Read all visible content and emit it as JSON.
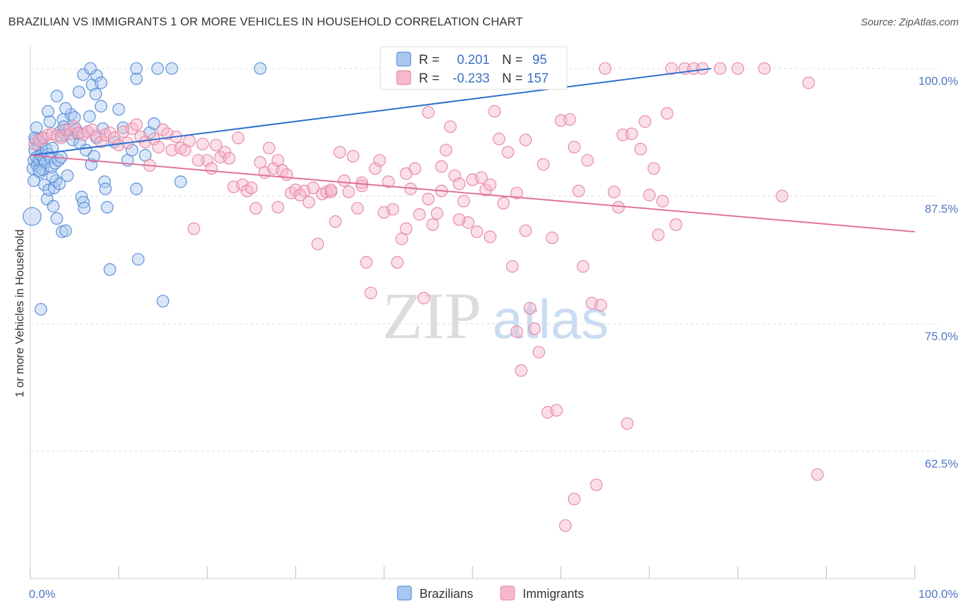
{
  "header": {
    "title": "BRAZILIAN VS IMMIGRANTS 1 OR MORE VEHICLES IN HOUSEHOLD CORRELATION CHART",
    "source": "Source: ZipAtlas.com"
  },
  "watermark": {
    "zip": "ZIP",
    "atlas": "atlas"
  },
  "colors": {
    "brazilians_fill": "#a9c8f0",
    "brazilians_stroke": "#5b8fd6",
    "brazilians_line": "#2b6fd0",
    "immigrants_fill": "#f6b9cc",
    "immigrants_stroke": "#e68aa8",
    "immigrants_line": "#e0709a",
    "grid": "#dddddd",
    "tick_text": "#4a78c4"
  },
  "legend": {
    "r_label": "R =",
    "n_label": "N =",
    "rows": [
      {
        "r": "0.201",
        "n": "95"
      },
      {
        "r": "-0.233",
        "n": "157"
      }
    ]
  },
  "chart_data": {
    "type": "scatter",
    "title": "BRAZILIAN VS IMMIGRANTS 1 OR MORE VEHICLES IN HOUSEHOLD CORRELATION CHART",
    "xlabel": "",
    "ylabel": "1 or more Vehicles in Household",
    "xlim": [
      0,
      100
    ],
    "ylim": [
      50,
      102
    ],
    "x_tick_labels": [
      "0.0%",
      "100.0%"
    ],
    "y_ticks": [
      62.5,
      75.0,
      87.5,
      100.0
    ],
    "y_tick_labels": [
      "62.5%",
      "75.0%",
      "87.5%",
      "100.0%"
    ],
    "grid": true,
    "legend_position": "top-center",
    "series": [
      {
        "name": "Brazilians",
        "trend": {
          "x": [
            0,
            77
          ],
          "y": [
            91.5,
            100
          ]
        },
        "points": [
          [
            0.2,
            85.5
          ],
          [
            0.3,
            90.2
          ],
          [
            0.4,
            91.0
          ],
          [
            0.5,
            92.0
          ],
          [
            0.6,
            93.0
          ],
          [
            0.7,
            91.3
          ],
          [
            0.8,
            90.5
          ],
          [
            0.9,
            92.5
          ],
          [
            1.0,
            91.0
          ],
          [
            1.1,
            89.8
          ],
          [
            1.2,
            91.5
          ],
          [
            1.3,
            93.2
          ],
          [
            1.4,
            90.1
          ],
          [
            1.5,
            91.1
          ],
          [
            1.6,
            88.6
          ],
          [
            1.7,
            90.8
          ],
          [
            1.8,
            92.1
          ],
          [
            1.9,
            87.2
          ],
          [
            2.0,
            91.6
          ],
          [
            2.1,
            88.1
          ],
          [
            2.2,
            94.8
          ],
          [
            2.3,
            91.2
          ],
          [
            2.4,
            90.3
          ],
          [
            2.5,
            92.2
          ],
          [
            2.6,
            86.5
          ],
          [
            2.7,
            88.3
          ],
          [
            2.8,
            90.7
          ],
          [
            2.9,
            89.0
          ],
          [
            3.0,
            85.3
          ],
          [
            3.2,
            91.0
          ],
          [
            3.3,
            88.7
          ],
          [
            3.4,
            93.8
          ],
          [
            3.5,
            91.3
          ],
          [
            3.6,
            84.0
          ],
          [
            3.7,
            95.0
          ],
          [
            3.8,
            94.3
          ],
          [
            3.9,
            93.5
          ],
          [
            4.0,
            84.1
          ],
          [
            4.2,
            89.5
          ],
          [
            4.4,
            94.0
          ],
          [
            4.6,
            95.5
          ],
          [
            4.8,
            93.0
          ],
          [
            5.0,
            95.2
          ],
          [
            5.2,
            94.0
          ],
          [
            5.4,
            93.6
          ],
          [
            5.6,
            92.7
          ],
          [
            5.8,
            87.4
          ],
          [
            6.0,
            86.9
          ],
          [
            6.1,
            86.3
          ],
          [
            6.3,
            92.0
          ],
          [
            6.5,
            93.8
          ],
          [
            6.7,
            95.3
          ],
          [
            6.9,
            90.6
          ],
          [
            7.2,
            91.4
          ],
          [
            7.5,
            93.2
          ],
          [
            8.0,
            96.3
          ],
          [
            8.2,
            94.1
          ],
          [
            8.4,
            88.9
          ],
          [
            8.5,
            88.2
          ],
          [
            8.7,
            86.4
          ],
          [
            9.0,
            80.3
          ],
          [
            9.5,
            92.8
          ],
          [
            10.0,
            96.0
          ],
          [
            10.5,
            94.2
          ],
          [
            11.0,
            91.0
          ],
          [
            11.5,
            92.0
          ],
          [
            12.0,
            88.2
          ],
          [
            12.2,
            81.3
          ],
          [
            13.0,
            91.5
          ],
          [
            13.5,
            93.7
          ],
          [
            14.0,
            94.6
          ],
          [
            14.4,
            100.0
          ],
          [
            15.0,
            77.2
          ],
          [
            16.0,
            100.0
          ],
          [
            17.0,
            88.9
          ],
          [
            0.4,
            89.0
          ],
          [
            0.7,
            94.2
          ],
          [
            1.2,
            92.8
          ],
          [
            2.5,
            89.4
          ],
          [
            3.0,
            97.3
          ],
          [
            5.5,
            97.7
          ],
          [
            6.0,
            99.4
          ],
          [
            7.0,
            98.4
          ],
          [
            7.5,
            99.3
          ],
          [
            8.0,
            98.6
          ],
          [
            7.4,
            97.5
          ],
          [
            12.0,
            99.0
          ],
          [
            12.0,
            100.0
          ],
          [
            6.8,
            100.0
          ],
          [
            26.0,
            100.0
          ],
          [
            1.2,
            76.4
          ],
          [
            2.0,
            95.8
          ],
          [
            3.5,
            93.4
          ],
          [
            4.0,
            96.1
          ],
          [
            1.0,
            90.0
          ],
          [
            0.5,
            93.2
          ]
        ]
      },
      {
        "name": "Immigrants",
        "trend": {
          "x": [
            0,
            100
          ],
          "y": [
            91.5,
            84.0
          ]
        },
        "points": [
          [
            0.5,
            92.6
          ],
          [
            1.0,
            93.0
          ],
          [
            1.5,
            93.2
          ],
          [
            2.0,
            93.5
          ],
          [
            2.5,
            93.6
          ],
          [
            3.0,
            93.4
          ],
          [
            3.5,
            93.2
          ],
          [
            4.0,
            94.0
          ],
          [
            4.5,
            93.6
          ],
          [
            5.0,
            94.3
          ],
          [
            5.5,
            93.7
          ],
          [
            6.0,
            93.5
          ],
          [
            6.5,
            93.8
          ],
          [
            7.0,
            94.0
          ],
          [
            7.5,
            93.4
          ],
          [
            8.0,
            92.8
          ],
          [
            8.5,
            93.5
          ],
          [
            9.0,
            93.7
          ],
          [
            9.5,
            93.2
          ],
          [
            10.0,
            92.5
          ],
          [
            10.5,
            93.8
          ],
          [
            11.0,
            92.7
          ],
          [
            11.5,
            94.1
          ],
          [
            12.0,
            94.5
          ],
          [
            12.5,
            93.3
          ],
          [
            13.0,
            92.8
          ],
          [
            13.5,
            90.5
          ],
          [
            14.0,
            93.1
          ],
          [
            14.5,
            92.3
          ],
          [
            15.0,
            94.0
          ],
          [
            15.5,
            93.6
          ],
          [
            16.0,
            92.0
          ],
          [
            16.5,
            93.3
          ],
          [
            17.0,
            92.2
          ],
          [
            17.5,
            92.0
          ],
          [
            18.0,
            92.9
          ],
          [
            18.5,
            84.3
          ],
          [
            19.5,
            92.6
          ],
          [
            20.0,
            91.0
          ],
          [
            20.5,
            90.2
          ],
          [
            21.0,
            92.5
          ],
          [
            21.5,
            91.3
          ],
          [
            22.0,
            91.8
          ],
          [
            22.5,
            91.2
          ],
          [
            23.0,
            88.4
          ],
          [
            23.5,
            93.2
          ],
          [
            24.0,
            88.6
          ],
          [
            24.5,
            88.0
          ],
          [
            25.0,
            88.3
          ],
          [
            25.5,
            86.3
          ],
          [
            26.0,
            90.8
          ],
          [
            26.5,
            89.8
          ],
          [
            27.0,
            92.2
          ],
          [
            27.5,
            90.2
          ],
          [
            28.0,
            91.0
          ],
          [
            28.5,
            90.0
          ],
          [
            29.0,
            89.6
          ],
          [
            29.5,
            87.8
          ],
          [
            30.0,
            88.1
          ],
          [
            31.0,
            88.0
          ],
          [
            31.5,
            86.9
          ],
          [
            32.0,
            88.3
          ],
          [
            32.5,
            82.8
          ],
          [
            33.0,
            87.7
          ],
          [
            33.5,
            87.9
          ],
          [
            34.0,
            87.9
          ],
          [
            34.5,
            85.0
          ],
          [
            35.0,
            91.8
          ],
          [
            35.5,
            89.0
          ],
          [
            36.0,
            87.9
          ],
          [
            36.5,
            91.4
          ],
          [
            37.0,
            86.3
          ],
          [
            37.5,
            88.8
          ],
          [
            38.0,
            81.0
          ],
          [
            38.5,
            78.0
          ],
          [
            39.0,
            90.2
          ],
          [
            39.5,
            91.0
          ],
          [
            40.0,
            85.9
          ],
          [
            40.5,
            88.9
          ],
          [
            41.0,
            86.2
          ],
          [
            41.5,
            81.0
          ],
          [
            42.0,
            83.3
          ],
          [
            42.5,
            89.7
          ],
          [
            43.0,
            88.2
          ],
          [
            43.5,
            90.2
          ],
          [
            44.0,
            85.7
          ],
          [
            44.5,
            77.5
          ],
          [
            45.0,
            87.2
          ],
          [
            45.5,
            84.7
          ],
          [
            46.0,
            85.8
          ],
          [
            46.5,
            88.0
          ],
          [
            47.0,
            92.0
          ],
          [
            47.5,
            94.3
          ],
          [
            48.0,
            89.5
          ],
          [
            48.5,
            88.7
          ],
          [
            49.0,
            87.0
          ],
          [
            49.5,
            84.9
          ],
          [
            50.0,
            89.1
          ],
          [
            50.5,
            84.0
          ],
          [
            51.0,
            89.3
          ],
          [
            51.5,
            88.1
          ],
          [
            52.0,
            88.6
          ],
          [
            52.5,
            95.8
          ],
          [
            53.0,
            93.1
          ],
          [
            53.5,
            86.8
          ],
          [
            54.0,
            91.8
          ],
          [
            54.5,
            80.6
          ],
          [
            55.0,
            74.2
          ],
          [
            55.5,
            70.4
          ],
          [
            56.0,
            93.0
          ],
          [
            56.5,
            76.5
          ],
          [
            57.0,
            74.5
          ],
          [
            57.5,
            72.2
          ],
          [
            58.0,
            90.6
          ],
          [
            58.5,
            66.3
          ],
          [
            59.0,
            83.4
          ],
          [
            59.5,
            66.5
          ],
          [
            60.0,
            94.9
          ],
          [
            61.0,
            95.0
          ],
          [
            61.5,
            92.3
          ],
          [
            62.0,
            88.0
          ],
          [
            62.5,
            80.6
          ],
          [
            63.0,
            91.0
          ],
          [
            63.5,
            77.0
          ],
          [
            64.0,
            59.2
          ],
          [
            64.5,
            76.8
          ],
          [
            65.0,
            100.0
          ],
          [
            66.0,
            87.9
          ],
          [
            67.0,
            93.5
          ],
          [
            67.5,
            65.2
          ],
          [
            68.0,
            93.6
          ],
          [
            69.0,
            92.1
          ],
          [
            70.0,
            87.6
          ],
          [
            70.5,
            90.2
          ],
          [
            71.0,
            83.7
          ],
          [
            72.0,
            95.6
          ],
          [
            72.5,
            100.0
          ],
          [
            74.0,
            100.0
          ],
          [
            75.0,
            100.0
          ],
          [
            76.0,
            100.0
          ],
          [
            78.0,
            100.0
          ],
          [
            80.0,
            100.0
          ],
          [
            83.0,
            100.0
          ],
          [
            85.0,
            87.5
          ],
          [
            88.0,
            98.6
          ],
          [
            89.0,
            60.2
          ],
          [
            41.0,
            100.0
          ],
          [
            45.0,
            95.7
          ],
          [
            46.5,
            90.4
          ],
          [
            48.5,
            85.2
          ],
          [
            52.0,
            83.5
          ],
          [
            55.0,
            87.8
          ],
          [
            56.0,
            84.1
          ],
          [
            60.5,
            55.2
          ],
          [
            61.5,
            57.8
          ],
          [
            66.5,
            86.4
          ],
          [
            69.5,
            94.8
          ],
          [
            73.0,
            84.7
          ],
          [
            71.5,
            87.0
          ],
          [
            28.0,
            86.4
          ],
          [
            30.5,
            87.6
          ],
          [
            34.0,
            88.1
          ],
          [
            37.5,
            88.5
          ],
          [
            42.5,
            84.3
          ],
          [
            19.0,
            91.0
          ]
        ]
      }
    ]
  },
  "bottom_legend": {
    "items": [
      "Brazilians",
      "Immigrants"
    ]
  }
}
